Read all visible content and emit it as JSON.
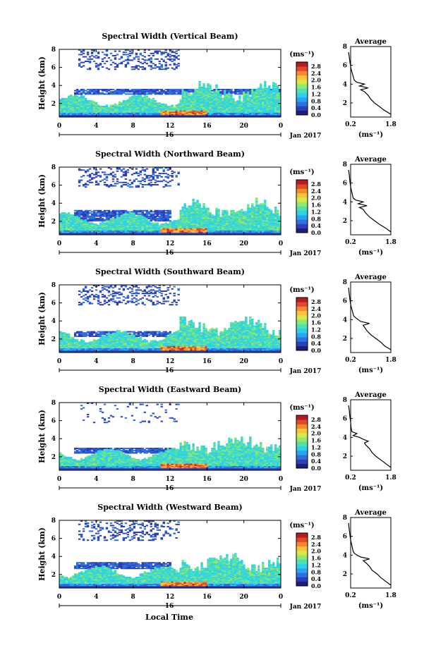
{
  "figure": {
    "xlabel": "Local Time",
    "date_label": "Jan 2017",
    "day_label": "16",
    "colorbar_unit": "(ms⁻¹)",
    "avg_xlabel": "(ms⁻¹)",
    "avg_title": "Average"
  },
  "colors": {
    "colormap": [
      "#1e1e78",
      "#2c3fb8",
      "#2f6fe0",
      "#2aa4f0",
      "#2fd0e8",
      "#4fe0b0",
      "#8fe870",
      "#d8e84a",
      "#f6c43c",
      "#f48a2e",
      "#e0482a",
      "#b81a22"
    ]
  },
  "chart_data": [
    {
      "type": "heatmap",
      "title": "Spectral Width (Vertical Beam)",
      "ylabel": "Height (km)",
      "xticks": [
        "0",
        "4",
        "8",
        "12",
        "16",
        "20",
        "0"
      ],
      "yticks": [
        "2",
        "4",
        "6",
        "8"
      ],
      "xlim": [
        0,
        24
      ],
      "ylim": [
        0.5,
        8
      ],
      "colorbar_ticks": [
        "2.8",
        "2.4",
        "2.0",
        "1.6",
        "1.2",
        "0.8",
        "0.4",
        "0.0"
      ],
      "colorbar_range": [
        0.0,
        3.0
      ],
      "profile": {
        "title": "Average",
        "xlabel": "(ms⁻¹)",
        "xticks": [
          "0.2",
          "1.8"
        ],
        "yticks": [
          "2",
          "4",
          "6",
          "8"
        ],
        "height": [
          0.8,
          1.2,
          1.6,
          2.0,
          2.4,
          2.8,
          3.2,
          3.4,
          3.6,
          3.8,
          4.0,
          4.2,
          4.4,
          5.0,
          5.6,
          6.2,
          6.8,
          7.4
        ],
        "width": [
          1.8,
          1.55,
          1.35,
          1.15,
          1.0,
          0.9,
          0.75,
          0.6,
          0.9,
          0.55,
          0.75,
          0.45,
          0.35,
          0.28,
          0.22,
          0.18,
          0.15,
          0.12
        ]
      }
    },
    {
      "type": "heatmap",
      "title": "Spectral Width (Northward Beam)",
      "ylabel": "Height (km)",
      "xticks": [
        "0",
        "4",
        "8",
        "12",
        "16",
        "20",
        "0"
      ],
      "yticks": [
        "2",
        "4",
        "6",
        "8"
      ],
      "xlim": [
        0,
        24
      ],
      "ylim": [
        0.5,
        8
      ],
      "colorbar_ticks": [
        "2.8",
        "2.4",
        "2.0",
        "1.6",
        "1.2",
        "0.8",
        "0.4",
        "0.0"
      ],
      "colorbar_range": [
        0.0,
        3.0
      ],
      "profile": {
        "title": "Average",
        "xlabel": "(ms⁻¹)",
        "xticks": [
          "0.2",
          "1.8"
        ],
        "yticks": [
          "2",
          "4",
          "6",
          "8"
        ],
        "height": [
          0.8,
          1.2,
          1.6,
          2.0,
          2.4,
          2.8,
          3.2,
          3.4,
          3.6,
          3.8,
          4.0,
          4.2,
          4.4,
          5.0,
          5.6,
          6.2,
          6.8,
          7.4
        ],
        "width": [
          1.8,
          1.6,
          1.35,
          1.15,
          0.95,
          0.8,
          0.7,
          0.55,
          0.85,
          0.5,
          0.7,
          0.4,
          0.3,
          0.25,
          0.2,
          0.17,
          0.15,
          0.12
        ]
      }
    },
    {
      "type": "heatmap",
      "title": "Spectral Width (Southward Beam)",
      "ylabel": "Height (km)",
      "xticks": [
        "0",
        "4",
        "8",
        "12",
        "16",
        "20",
        "0"
      ],
      "yticks": [
        "2",
        "4",
        "6",
        "8"
      ],
      "xlim": [
        0,
        24
      ],
      "ylim": [
        0.5,
        8
      ],
      "colorbar_ticks": [
        "2.8",
        "2.4",
        "2.0",
        "1.6",
        "1.2",
        "0.8",
        "0.4",
        "0.0"
      ],
      "colorbar_range": [
        0.0,
        3.0
      ],
      "profile": {
        "title": "Average",
        "xlabel": "(ms⁻¹)",
        "xticks": [
          "0.2",
          "1.8"
        ],
        "yticks": [
          "2",
          "4",
          "6",
          "8"
        ],
        "height": [
          0.8,
          1.2,
          1.6,
          2.0,
          2.4,
          2.8,
          3.2,
          3.4,
          3.6,
          3.8,
          4.0,
          4.2,
          4.4,
          5.0,
          5.6,
          6.2,
          6.8,
          7.4
        ],
        "width": [
          1.8,
          1.55,
          1.4,
          1.2,
          1.0,
          0.85,
          0.75,
          0.7,
          0.95,
          0.6,
          0.5,
          0.4,
          0.32,
          0.26,
          0.2,
          0.17,
          0.14,
          0.12
        ]
      }
    },
    {
      "type": "heatmap",
      "title": "Spectral Width (Eastward Beam)",
      "ylabel": "Height (km)",
      "xticks": [
        "0",
        "4",
        "8",
        "12",
        "16",
        "20",
        "0"
      ],
      "yticks": [
        "2",
        "4",
        "6",
        "8"
      ],
      "xlim": [
        0,
        24
      ],
      "ylim": [
        0.5,
        8
      ],
      "colorbar_ticks": [
        "2.8",
        "2.4",
        "2.0",
        "1.6",
        "1.2",
        "0.8",
        "0.4",
        "0.0"
      ],
      "colorbar_range": [
        0.0,
        3.0
      ],
      "profile": {
        "title": "Average",
        "xlabel": "(ms⁻¹)",
        "xticks": [
          "0.2",
          "1.8"
        ],
        "yticks": [
          "2",
          "4",
          "6",
          "8"
        ],
        "height": [
          0.8,
          1.2,
          1.6,
          2.0,
          2.4,
          2.8,
          3.2,
          3.4,
          3.6,
          3.8,
          4.0,
          4.2,
          4.4,
          4.6,
          5.0,
          5.6,
          6.2,
          6.8,
          7.4
        ],
        "width": [
          1.8,
          1.6,
          1.4,
          1.2,
          1.05,
          0.95,
          0.8,
          0.75,
          0.9,
          0.7,
          0.55,
          0.3,
          0.45,
          0.25,
          0.22,
          0.2,
          0.17,
          0.15,
          0.12
        ]
      }
    },
    {
      "type": "heatmap",
      "title": "Spectral Width (Westward Beam)",
      "ylabel": "Height (km)",
      "xticks": [
        "0",
        "4",
        "8",
        "12",
        "16",
        "20",
        "0"
      ],
      "yticks": [
        "2",
        "4",
        "6",
        "8"
      ],
      "xlim": [
        0,
        24
      ],
      "ylim": [
        0.5,
        8
      ],
      "colorbar_ticks": [
        "2.8",
        "2.4",
        "2.0",
        "1.6",
        "1.2",
        "0.8",
        "0.4",
        "0.0"
      ],
      "colorbar_range": [
        0.0,
        3.0
      ],
      "profile": {
        "title": "Average",
        "xlabel": "(ms⁻¹)",
        "xticks": [
          "0.2",
          "1.8"
        ],
        "yticks": [
          "2",
          "4",
          "6",
          "8"
        ],
        "height": [
          0.8,
          1.2,
          1.6,
          2.0,
          2.4,
          2.8,
          3.2,
          3.4,
          3.6,
          3.8,
          4.0,
          4.2,
          4.4,
          5.0,
          5.6,
          6.2,
          6.8,
          7.4
        ],
        "width": [
          1.8,
          1.6,
          1.4,
          1.25,
          1.05,
          0.95,
          0.8,
          0.7,
          0.95,
          0.6,
          0.45,
          0.35,
          0.3,
          0.25,
          0.2,
          0.17,
          0.14,
          0.12
        ]
      }
    }
  ]
}
